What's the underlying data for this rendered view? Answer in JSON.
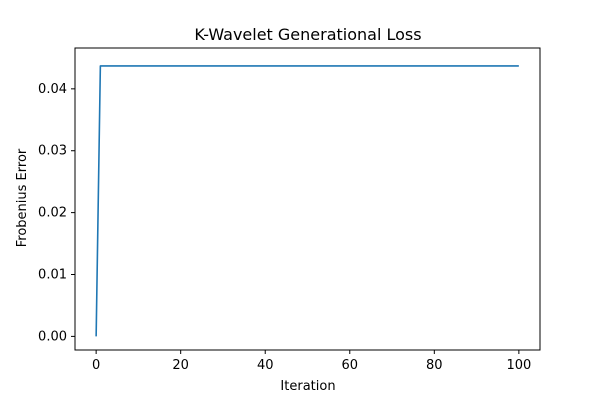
{
  "chart_data": {
    "type": "line",
    "title": "K-Wavelet Generational Loss",
    "xlabel": "Iteration",
    "ylabel": "Frobenius Error",
    "xlim": [
      -5,
      105
    ],
    "ylim": [
      -0.0022,
      0.0466
    ],
    "x_ticks": [
      0,
      20,
      40,
      60,
      80,
      100
    ],
    "y_ticks": [
      0.0,
      0.01,
      0.02,
      0.03,
      0.04
    ],
    "x_tick_labels": [
      "0",
      "20",
      "40",
      "60",
      "80",
      "100"
    ],
    "y_tick_labels": [
      "0.00",
      "0.01",
      "0.02",
      "0.03",
      "0.04"
    ],
    "grid": false,
    "series": [
      {
        "color": "#1f77b4",
        "x": [
          0,
          1,
          100
        ],
        "y": [
          0.0,
          0.0437,
          0.0437
        ]
      }
    ]
  }
}
